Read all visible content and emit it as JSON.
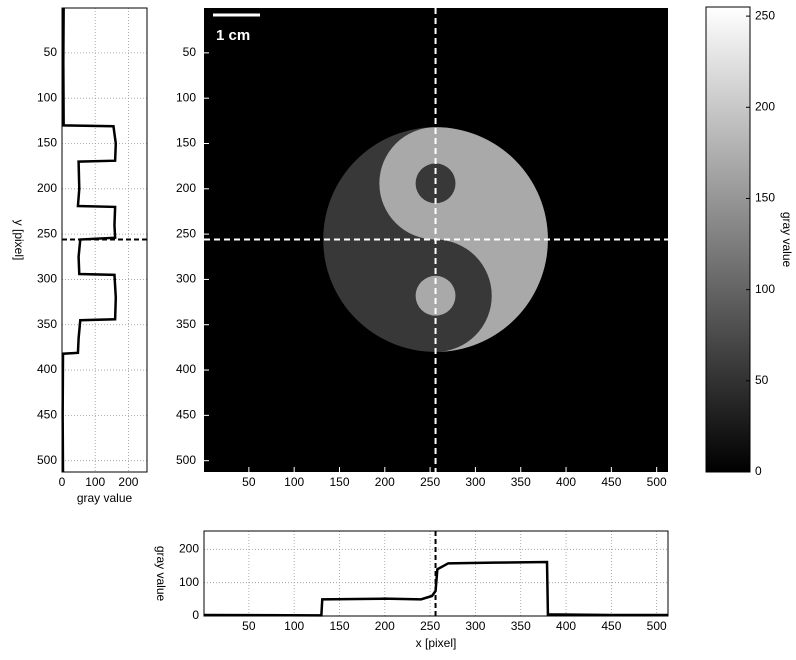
{
  "chart_data": [
    {
      "type": "image",
      "xlim": [
        0.5,
        512.5
      ],
      "ylim": [
        0.5,
        512.5
      ],
      "xticks": [
        50,
        100,
        150,
        200,
        250,
        300,
        350,
        400,
        450,
        500
      ],
      "yticks": [
        50,
        100,
        150,
        200,
        250,
        300,
        350,
        400,
        450,
        500
      ],
      "crosshair": {
        "x": 256,
        "y": 256
      },
      "scale_bar_label": "1 cm"
    },
    {
      "type": "vprofile",
      "xlabel": "gray value",
      "ylabel": "y [pixel]",
      "xlim": [
        0,
        256
      ],
      "ylim": [
        0.5,
        512.5
      ],
      "xticks": [
        0,
        100,
        200
      ],
      "yticks": [
        50,
        100,
        150,
        200,
        250,
        300,
        350,
        400,
        450,
        500
      ],
      "grid": true,
      "crosshair": 256,
      "color": "#000000",
      "y": [
        0,
        60,
        130,
        131,
        150,
        169,
        170,
        200,
        219,
        220,
        240,
        254,
        256,
        275,
        294,
        295,
        320,
        344,
        345,
        365,
        381,
        382,
        450,
        512
      ],
      "values": [
        5,
        4,
        5,
        155,
        162,
        160,
        50,
        52,
        48,
        160,
        158,
        160,
        55,
        50,
        52,
        158,
        162,
        160,
        55,
        50,
        48,
        3,
        2,
        3
      ]
    },
    {
      "type": "line",
      "xlabel": "x [pixel]",
      "ylabel": "gray value",
      "xlim": [
        0.5,
        512.5
      ],
      "ylim": [
        0,
        255
      ],
      "xticks": [
        50,
        100,
        150,
        200,
        250,
        300,
        350,
        400,
        450,
        500
      ],
      "yticks": [
        0,
        100,
        200
      ],
      "grid": true,
      "crosshair": 256,
      "color": "#000000",
      "x": [
        0,
        130,
        131,
        200,
        240,
        252,
        256,
        258,
        270,
        320,
        379,
        380,
        450,
        512
      ],
      "values": [
        3,
        2,
        50,
        52,
        50,
        60,
        75,
        140,
        158,
        160,
        162,
        5,
        3,
        3
      ]
    },
    {
      "type": "colorbar",
      "label": "gray value",
      "ylim": [
        0,
        255
      ],
      "yticks": [
        0,
        50,
        100,
        150,
        200,
        250
      ],
      "colors": [
        "#000000",
        "#ffffff"
      ]
    }
  ]
}
